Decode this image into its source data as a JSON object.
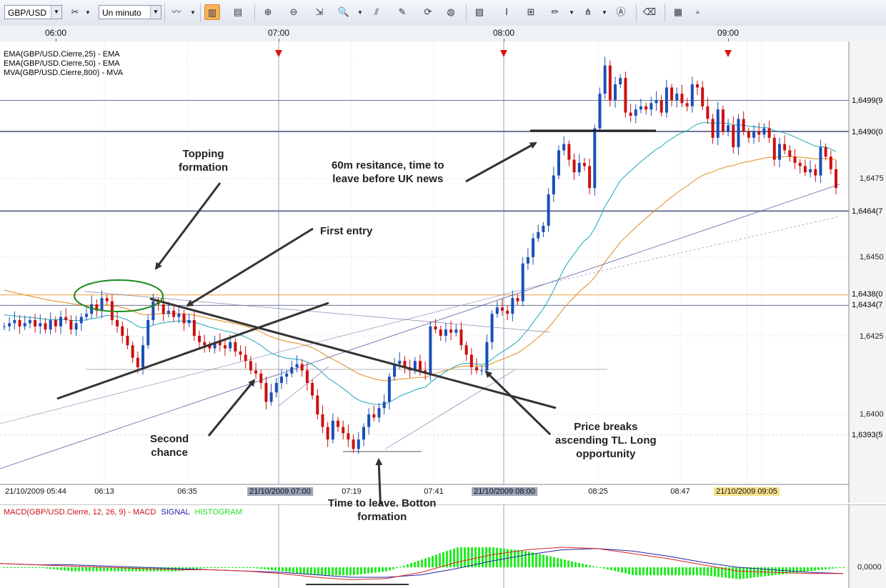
{
  "toolbar": {
    "symbol": "GBP/USD",
    "timeframe": "Un minuto",
    "icons": [
      "tools-icon",
      "chart-type-icon",
      "bar-chart-icon",
      "candle-chart-icon",
      "zoom-in-icon",
      "zoom-out-icon",
      "zoom-icon",
      "indicator-icon",
      "edit-icon",
      "refresh-icon",
      "globe-icon",
      "image-icon",
      "cursor-icon",
      "grid-icon",
      "pencil-icon",
      "fibonacci-icon",
      "text-icon",
      "eraser-icon",
      "layout-icon"
    ]
  },
  "time_axis_top": [
    "06:00",
    "07:00",
    "08:00",
    "09:00"
  ],
  "time_axis_bottom": [
    "21/10/2009 05:44",
    "06:13",
    "06:35",
    "21/10/2009 07:00",
    "07:19",
    "07:41",
    "21/10/2009 08:00",
    "08:25",
    "08:47",
    "21/10/2009 09:05"
  ],
  "legend": [
    {
      "text": "EMA(GBP/USD.Cierre,25) - EMA",
      "color": "#1aa7b8"
    },
    {
      "text": "EMA(GBP/USD.Cierre,50) - EMA",
      "color": "#e08a1e"
    },
    {
      "text": "MVA(GBP/USD.Cierre,800) - MVA",
      "color": "#000000"
    }
  ],
  "price_labels": [
    "1,6475",
    "1,6450",
    "1,6425",
    "1,6400"
  ],
  "price_boxes": [
    {
      "text": "1,6499(9",
      "bg": "#dde2ec"
    },
    {
      "text": "1,6490(0",
      "bg": "#dde2ec"
    },
    {
      "text": "1,6464(7",
      "bg": "#dde2ec"
    },
    {
      "text": "1,6438(0",
      "bg": "#f7c98a"
    },
    {
      "text": "1,6434(7",
      "bg": "#dde2ec"
    },
    {
      "text": "1,6393(5",
      "bg": "#fbe7a6"
    }
  ],
  "macd": {
    "legend_main": "MACD(GBP/USD.Cierre, 12, 26, 9) - MACD",
    "legend_signal": "SIGNAL",
    "legend_hist": "HISTOGRAM",
    "zero_label": "0,0000",
    "colors": {
      "macd": "#dd2222",
      "signal": "#2222aa",
      "hist": "#22ee22"
    }
  },
  "annotations": {
    "topping": [
      "Topping",
      "formation"
    ],
    "first_entry": [
      "First entry"
    ],
    "resistance": [
      "60m resitance, time to",
      "leave before UK news"
    ],
    "second": [
      "Second",
      "chance"
    ],
    "breaks": [
      "Price breaks",
      "ascending TL. Long",
      "opportunity"
    ],
    "leave": [
      "Time to leave. Botton",
      "formation"
    ]
  },
  "colors": {
    "up": "#1a4fb8",
    "down": "#cc1010",
    "ema25": "#1aa7b8",
    "ema50": "#e08a1e",
    "mva": "#000000",
    "hline": "#6a7696",
    "orange_line": "#f0a040"
  },
  "chart_data": [
    {
      "type": "candlestick",
      "title": "GBP/USD",
      "timeframe": "Un minuto",
      "y_range": [
        1.6375,
        1.6515
      ],
      "x_time_range": [
        "05:44",
        "09:12"
      ],
      "candle_closes": [
        1.6428,
        1.6429,
        1.643,
        1.6428,
        1.6429,
        1.643,
        1.6428,
        1.6429,
        1.6427,
        1.643,
        1.6428,
        1.6431,
        1.643,
        1.6427,
        1.6429,
        1.6431,
        1.6432,
        1.6435,
        1.6433,
        1.6437,
        1.6436,
        1.643,
        1.6428,
        1.6425,
        1.6422,
        1.6418,
        1.6415,
        1.6422,
        1.643,
        1.6436,
        1.6435,
        1.6432,
        1.6433,
        1.6431,
        1.6432,
        1.6429,
        1.643,
        1.6425,
        1.6423,
        1.6422,
        1.6421,
        1.6423,
        1.6422,
        1.6421,
        1.6423,
        1.642,
        1.6419,
        1.6417,
        1.6414,
        1.6413,
        1.641,
        1.6404,
        1.6407,
        1.641,
        1.6412,
        1.6413,
        1.6415,
        1.6416,
        1.6414,
        1.641,
        1.6406,
        1.64,
        1.6396,
        1.6392,
        1.6398,
        1.6396,
        1.6394,
        1.6392,
        1.6389,
        1.6392,
        1.6396,
        1.64,
        1.6399,
        1.6402,
        1.6404,
        1.6412,
        1.6416,
        1.6417,
        1.6415,
        1.6414,
        1.6417,
        1.6414,
        1.6413,
        1.6428,
        1.6427,
        1.6425,
        1.6427,
        1.6426,
        1.6427,
        1.6422,
        1.6419,
        1.6415,
        1.6414,
        1.6414,
        1.6423,
        1.6432,
        1.6434,
        1.6433,
        1.6432,
        1.6437,
        1.6436,
        1.6448,
        1.645,
        1.6456,
        1.6458,
        1.646,
        1.647,
        1.6476,
        1.6484,
        1.6486,
        1.6481,
        1.6477,
        1.648,
        1.6479,
        1.6472,
        1.6491,
        1.6502,
        1.6511,
        1.65,
        1.6505,
        1.6507,
        1.6496,
        1.6495,
        1.6497,
        1.6498,
        1.6497,
        1.6499,
        1.65,
        1.6496,
        1.6504,
        1.65,
        1.6502,
        1.6499,
        1.6498,
        1.6505,
        1.6504,
        1.6498,
        1.6494,
        1.6488,
        1.6497,
        1.649,
        1.6492,
        1.6485,
        1.6494,
        1.649,
        1.6488,
        1.649,
        1.6489,
        1.6491,
        1.6488,
        1.6481,
        1.6486,
        1.6484,
        1.6482,
        1.648,
        1.6479,
        1.6477,
        1.6478,
        1.6476,
        1.6485,
        1.6482,
        1.6478,
        1.6472
      ],
      "series": [
        {
          "name": "EMA(GBP/USD.Cierre,25) - EMA",
          "color": "#1aa7b8"
        },
        {
          "name": "EMA(GBP/USD.Cierre,50) - EMA",
          "color": "#e08a1e"
        },
        {
          "name": "MVA(GBP/USD.Cierre,800) - MVA",
          "color": "#000000"
        }
      ],
      "horizontal_levels": [
        1.64999,
        1.649,
        1.64647,
        1.6438,
        1.64347,
        1.63935
      ]
    },
    {
      "type": "line",
      "title": "MACD(GBP/USD.Cierre, 12, 26, 9) - MACD",
      "series": [
        {
          "name": "MACD",
          "values": [
            0.0003,
            0.0002,
            0.0001,
            0.0,
            -0.0001,
            -0.0002,
            -0.0002,
            -0.0003,
            -0.0005,
            -0.0008,
            -0.001,
            -0.0009,
            -0.0004,
            0.0004,
            0.001,
            0.0014,
            0.0016,
            0.0015,
            0.0011,
            0.0007,
            0.0002,
            -0.0003,
            -0.0004,
            -0.0005,
            -0.0005
          ]
        },
        {
          "name": "SIGNAL",
          "values": [
            0.0003,
            0.0002,
            0.0002,
            0.0001,
            0.0,
            -0.0001,
            -0.0002,
            -0.0003,
            -0.0004,
            -0.0006,
            -0.0008,
            -0.0008,
            -0.0006,
            -0.0001,
            0.0005,
            0.001,
            0.0014,
            0.0015,
            0.0013,
            0.0009,
            0.0004,
            0.0,
            -0.0002,
            -0.0004,
            -0.0005
          ]
        },
        {
          "name": "HISTOGRAM"
        }
      ],
      "zero_label": "0,0000"
    }
  ]
}
